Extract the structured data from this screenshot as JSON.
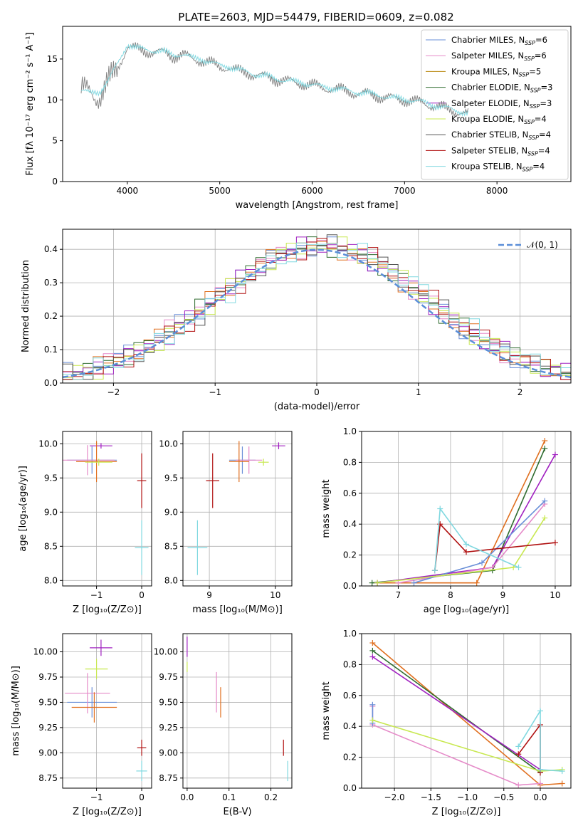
{
  "figure": {
    "title": "PLATE=2603, MJD=54479, FIBERID=0609, z=0.082"
  },
  "legend_spectrum": [
    {
      "label": "Chabrier MILES, N",
      "sub": "SSP",
      "suffix": "=6",
      "color": "#6a8fd8"
    },
    {
      "label": "Salpeter MILES, N",
      "sub": "SSP",
      "suffix": "=6",
      "color": "#e58ac8"
    },
    {
      "label": "Kroupa MILES, N",
      "sub": "SSP",
      "suffix": "=5",
      "color": "#b8860b"
    },
    {
      "label": "Chabrier ELODIE, N",
      "sub": "SSP",
      "suffix": "=3",
      "color": "#2e6b2e"
    },
    {
      "label": "Salpeter ELODIE, N",
      "sub": "SSP",
      "suffix": "=3",
      "color": "#a020c0"
    },
    {
      "label": "Kroupa ELODIE, N",
      "sub": "SSP",
      "suffix": "=4",
      "color": "#c8e850"
    },
    {
      "label": "Chabrier STELIB, N",
      "sub": "SSP",
      "suffix": "=4",
      "color": "#555555"
    },
    {
      "label": "Salpeter STELIB, N",
      "sub": "SSP",
      "suffix": "=4",
      "color": "#b01010"
    },
    {
      "label": "Kroupa STELIB, N",
      "sub": "SSP",
      "suffix": "=4",
      "color": "#80d8e0"
    }
  ],
  "chart_data": [
    {
      "id": "spectrum",
      "type": "line",
      "xlabel": "wavelength [Angstrom, rest frame]",
      "ylabel": "Flux [fλ 10⁻¹⁷ erg cm⁻² s⁻¹ A⁻¹]",
      "xlim": [
        3300,
        8800
      ],
      "ylim": [
        0,
        19
      ],
      "xticks": [
        4000,
        5000,
        6000,
        7000,
        8000
      ],
      "yticks": [
        0,
        5,
        10,
        15
      ],
      "series": [
        {
          "name": "data",
          "color": "#808080",
          "x": [
            3500,
            3600,
            3700,
            3800,
            3900,
            4000,
            4100,
            4200,
            4300,
            4400,
            4500,
            4600,
            4700,
            4800,
            4900,
            5000,
            5100,
            5200,
            5300,
            5400,
            5500,
            5600,
            5700,
            5800,
            5900,
            6000,
            6100,
            6200,
            6300,
            6400,
            6500,
            6600,
            6700,
            6800,
            6900,
            7000,
            7100,
            7200,
            7300,
            7400,
            7500,
            7600,
            7700
          ],
          "y": [
            11,
            11,
            10.5,
            12,
            14,
            16.5,
            16.2,
            16,
            15.8,
            15.8,
            15.3,
            15.5,
            15,
            14.8,
            14.5,
            14,
            14,
            13.5,
            13.3,
            13,
            12.8,
            12.5,
            12.4,
            12.1,
            12,
            11.8,
            11.5,
            11.4,
            11.2,
            11,
            10.8,
            10.7,
            10.5,
            10.3,
            10.1,
            10,
            9.8,
            9.6,
            9.3,
            9,
            8.8,
            8.5,
            8.2
          ]
        },
        {
          "name": "model",
          "color": "#80d8e0",
          "x": [
            3500,
            3600,
            3700,
            3800,
            3900,
            4000,
            4100,
            4200,
            4300,
            4400,
            4500,
            4600,
            4700,
            4800,
            4900,
            5000,
            5100,
            5200,
            5300,
            5400,
            5500,
            5600,
            5700,
            5800,
            5900,
            6000,
            6100,
            6200,
            6300,
            6400,
            6500,
            6600,
            6700,
            6800,
            6900,
            7000,
            7100,
            7200,
            7300,
            7400,
            7500,
            7600,
            7700
          ],
          "y": [
            11.2,
            10.8,
            11,
            12.5,
            14.5,
            16.8,
            16.3,
            16.2,
            16,
            15.9,
            15.5,
            15.6,
            15.1,
            15,
            14.6,
            14.2,
            14.1,
            13.7,
            13.4,
            13.1,
            12.9,
            12.6,
            12.4,
            12.2,
            12.1,
            11.9,
            11.6,
            11.5,
            11.3,
            11.1,
            10.9,
            10.8,
            10.6,
            10.4,
            10.2,
            10.1,
            9.9,
            9.7,
            9.4,
            9.1,
            8.9,
            8.6,
            8.3
          ]
        }
      ]
    },
    {
      "id": "residuals",
      "type": "line",
      "xlabel": "(data-model)/error",
      "ylabel": "Normed distribution",
      "xlim": [
        -2.5,
        2.5
      ],
      "ylim": [
        0,
        0.46
      ],
      "xticks": [
        -2,
        -1,
        0,
        1,
        2
      ],
      "yticks": [
        0.0,
        0.1,
        0.2,
        0.3,
        0.4
      ],
      "legend": "𝒩(0, 1)"
    },
    {
      "id": "age_Z",
      "type": "scatter",
      "xlabel": "Z [log₁₀(Z/Z⊙)]",
      "ylabel": "age  [log₁₀(age/yr)]",
      "xlim": [
        -1.75,
        0.22
      ],
      "ylim": [
        7.92,
        10.18
      ],
      "xticks": [
        -1,
        0
      ],
      "yticks": [
        8.0,
        8.5,
        9.0,
        9.5,
        10.0
      ],
      "points": [
        {
          "x": -0.9,
          "y": 9.97,
          "ex": 0.25,
          "ey": 0.04,
          "color": "#a020c0"
        },
        {
          "x": -1.1,
          "y": 9.76,
          "ex": 0.55,
          "ey": 0.2,
          "color": "#6a8fd8"
        },
        {
          "x": -1.2,
          "y": 9.76,
          "ex": 0.6,
          "ey": 0.22,
          "color": "#e58ac8"
        },
        {
          "x": -1.0,
          "y": 9.74,
          "ex": 0.45,
          "ey": 0.3,
          "color": "#e07020"
        },
        {
          "x": -0.95,
          "y": 9.73,
          "ex": 0.3,
          "ey": 0.05,
          "color": "#c8e850"
        },
        {
          "x": 0.0,
          "y": 9.46,
          "ex": 0.1,
          "ey": 0.4,
          "color": "#b01010"
        },
        {
          "x": 0.0,
          "y": 8.48,
          "ex": 0.15,
          "ey": 0.4,
          "color": "#80d8e0"
        }
      ]
    },
    {
      "id": "age_mass",
      "type": "scatter",
      "xlabel": "mass [log₁₀(M/M⊙)]",
      "ylabel": "",
      "xlim": [
        8.6,
        10.25
      ],
      "ylim": [
        7.92,
        10.18
      ],
      "xticks": [
        9,
        10
      ],
      "yticks": [
        8.0,
        8.5,
        9.0,
        9.5,
        10.0
      ],
      "points": [
        {
          "x": 10.05,
          "y": 9.97,
          "ex": 0.1,
          "ey": 0.05,
          "color": "#a020c0"
        },
        {
          "x": 9.5,
          "y": 9.76,
          "ex": 0.2,
          "ey": 0.2,
          "color": "#6a8fd8"
        },
        {
          "x": 9.6,
          "y": 9.76,
          "ex": 0.2,
          "ey": 0.2,
          "color": "#e58ac8"
        },
        {
          "x": 9.45,
          "y": 9.74,
          "ex": 0.15,
          "ey": 0.3,
          "color": "#e07020"
        },
        {
          "x": 9.82,
          "y": 9.73,
          "ex": 0.08,
          "ey": 0.05,
          "color": "#c8e850"
        },
        {
          "x": 9.05,
          "y": 9.46,
          "ex": 0.1,
          "ey": 0.4,
          "color": "#b01010"
        },
        {
          "x": 8.82,
          "y": 8.48,
          "ex": 0.15,
          "ey": 0.4,
          "color": "#80d8e0"
        }
      ]
    },
    {
      "id": "weight_age",
      "type": "line",
      "xlabel": "age  [log₁₀(age/yr)]",
      "ylabel": "mass weight",
      "xlim": [
        6.3,
        10.3
      ],
      "ylim": [
        0,
        1.0
      ],
      "xticks": [
        7,
        8,
        9,
        10
      ],
      "yticks": [
        0.0,
        0.2,
        0.4,
        0.6,
        0.8,
        1.0
      ],
      "series": [
        {
          "name": "Chabrier ELODIE",
          "color": "#2e6b2e",
          "x": [
            6.5,
            8.8,
            9.8
          ],
          "y": [
            0.02,
            0.1,
            0.89
          ]
        },
        {
          "name": "Kroupa MILES",
          "color": "#e07020",
          "x": [
            6.6,
            8.5,
            9.8
          ],
          "y": [
            0.02,
            0.02,
            0.94
          ]
        },
        {
          "name": "Salpeter ELODIE",
          "color": "#a020c0",
          "x": [
            6.6,
            8.8,
            10.0
          ],
          "y": [
            0.02,
            0.12,
            0.85
          ]
        },
        {
          "name": "Salpeter MILES",
          "color": "#e58ac8",
          "x": [
            7.0,
            8.8,
            9.8
          ],
          "y": [
            0.02,
            0.12,
            0.53
          ]
        },
        {
          "name": "Chabrier MILES",
          "color": "#6a8fd8",
          "x": [
            7.3,
            8.6,
            9.8
          ],
          "y": [
            0.02,
            0.15,
            0.55
          ]
        },
        {
          "name": "Kroupa ELODIE",
          "color": "#c8e850",
          "x": [
            6.6,
            9.2,
            9.8
          ],
          "y": [
            0.02,
            0.12,
            0.44
          ]
        },
        {
          "name": "Salpeter STELIB",
          "color": "#b01010",
          "x": [
            7.7,
            7.8,
            8.3,
            10.0
          ],
          "y": [
            0.1,
            0.4,
            0.22,
            0.28
          ]
        },
        {
          "name": "Kroupa STELIB",
          "color": "#80d8e0",
          "x": [
            7.7,
            7.8,
            8.3,
            9.3
          ],
          "y": [
            0.1,
            0.5,
            0.27,
            0.12
          ]
        }
      ]
    },
    {
      "id": "mass_Z",
      "type": "scatter",
      "xlabel": "Z [log₁₀(Z/Z⊙)]",
      "ylabel": "mass [log₁₀(M/M⊙)]",
      "xlim": [
        -1.75,
        0.22
      ],
      "ylim": [
        8.65,
        10.18
      ],
      "xticks": [
        -1,
        0
      ],
      "yticks": [
        8.75,
        9.0,
        9.25,
        9.5,
        9.75,
        10.0
      ],
      "points": [
        {
          "x": -0.9,
          "y": 10.04,
          "ex": 0.25,
          "ey": 0.08,
          "color": "#a020c0"
        },
        {
          "x": -1.0,
          "y": 9.83,
          "ex": 0.25,
          "ey": 0.1,
          "color": "#c8e850"
        },
        {
          "x": -1.1,
          "y": 9.5,
          "ex": 0.55,
          "ey": 0.15,
          "color": "#6a8fd8"
        },
        {
          "x": -1.2,
          "y": 9.59,
          "ex": 0.5,
          "ey": 0.2,
          "color": "#e58ac8"
        },
        {
          "x": -1.05,
          "y": 9.45,
          "ex": 0.5,
          "ey": 0.15,
          "color": "#e07020"
        },
        {
          "x": 0.0,
          "y": 9.05,
          "ex": 0.1,
          "ey": 0.08,
          "color": "#b01010"
        },
        {
          "x": 0.0,
          "y": 8.82,
          "ex": 0.12,
          "ey": 0.1,
          "color": "#80d8e0"
        }
      ]
    },
    {
      "id": "mass_EBV",
      "type": "scatter",
      "xlabel": "E(B-V)",
      "ylabel": "",
      "xlim": [
        -0.01,
        0.25
      ],
      "ylim": [
        8.65,
        10.18
      ],
      "xticks": [
        0.0,
        0.1,
        0.2
      ],
      "yticks": [
        8.75,
        9.0,
        9.25,
        9.5,
        9.75,
        10.0
      ],
      "points": [
        {
          "x": 0.0,
          "y": 10.05,
          "ex": 0,
          "ey": 0.1,
          "color": "#a020c0"
        },
        {
          "x": 0.0,
          "y": 9.85,
          "ex": 0,
          "ey": 0.05,
          "color": "#c8e850"
        },
        {
          "x": 0.07,
          "y": 9.6,
          "ex": 0,
          "ey": 0.2,
          "color": "#e58ac8"
        },
        {
          "x": 0.08,
          "y": 9.5,
          "ex": 0,
          "ey": 0.15,
          "color": "#e07020"
        },
        {
          "x": 0.23,
          "y": 9.05,
          "ex": 0,
          "ey": 0.08,
          "color": "#b01010"
        },
        {
          "x": 0.24,
          "y": 8.82,
          "ex": 0,
          "ey": 0.1,
          "color": "#80d8e0"
        }
      ]
    },
    {
      "id": "weight_Z",
      "type": "line",
      "xlabel": "Z [log₁₀(Z/Z⊙)]",
      "ylabel": "mass weight",
      "xlim": [
        -2.45,
        0.42
      ],
      "ylim": [
        0,
        1.0
      ],
      "xticks": [
        -2.0,
        -1.5,
        -1.0,
        -0.5,
        0.0
      ],
      "yticks": [
        0.0,
        0.2,
        0.4,
        0.6,
        0.8,
        1.0
      ],
      "series": [
        {
          "name": "Kroupa MILES",
          "color": "#e07020",
          "x": [
            -2.3,
            0.0,
            0.3
          ],
          "y": [
            0.94,
            0.02,
            0.03
          ]
        },
        {
          "name": "Chabrier ELODIE",
          "color": "#2e6b2e",
          "x": [
            -2.3,
            0.0
          ],
          "y": [
            0.89,
            0.1
          ]
        },
        {
          "name": "Salpeter ELODIE",
          "color": "#a020c0",
          "x": [
            -2.3,
            0.0
          ],
          "y": [
            0.85,
            0.12
          ]
        },
        {
          "name": "Salpeter MILES",
          "color": "#e58ac8",
          "x": [
            -2.3,
            -2.3,
            -0.3,
            0.0
          ],
          "y": [
            0.53,
            0.41,
            0.02,
            0.03
          ]
        },
        {
          "name": "Chabrier MILES",
          "color": "#6a8fd8",
          "x": [
            -2.3,
            -2.3
          ],
          "y": [
            0.54,
            0.42
          ]
        },
        {
          "name": "Kroupa ELODIE",
          "color": "#c8e850",
          "x": [
            -2.3,
            0.0,
            0.3
          ],
          "y": [
            0.44,
            0.11,
            0.12
          ]
        },
        {
          "name": "Salpeter STELIB",
          "color": "#b01010",
          "x": [
            -0.3,
            0.0,
            0.0
          ],
          "y": [
            0.22,
            0.41,
            0.1
          ]
        },
        {
          "name": "Kroupa STELIB",
          "color": "#80d8e0",
          "x": [
            -0.3,
            0.0,
            0.0,
            0.3
          ],
          "y": [
            0.27,
            0.5,
            0.12,
            0.11
          ]
        }
      ]
    }
  ]
}
